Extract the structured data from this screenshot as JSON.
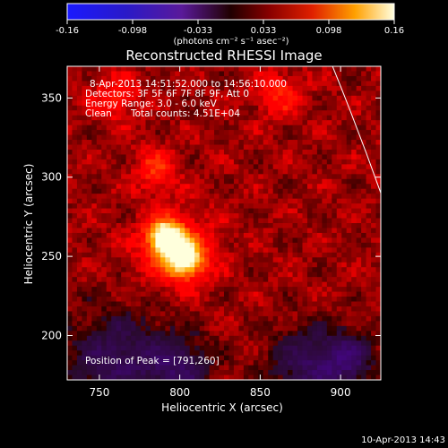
{
  "chart_data": {
    "type": "heatmap",
    "title": "Reconstructed RHESSI Image",
    "xlabel": "Heliocentric X (arcsec)",
    "ylabel": "Heliocentric Y (arcsec)",
    "xlim": [
      730,
      925
    ],
    "ylim": [
      172,
      370
    ],
    "xticks": [
      750,
      800,
      850,
      900
    ],
    "yticks": [
      200,
      250,
      300,
      350
    ],
    "colorbar": {
      "range": [
        -0.16,
        0.16
      ],
      "ticks": [
        "-0.16",
        "-0.098",
        "-0.033",
        "0.033",
        "0.098",
        "0.16"
      ],
      "label": "(photons cm⁻² s⁻¹ asec⁻²)",
      "colormap": "hot-blue diverging"
    },
    "peak_position": [
      791,
      260
    ],
    "sources": [
      {
        "x": 791,
        "y": 262,
        "amplitude": 0.14,
        "sigma": 7
      },
      {
        "x": 803,
        "y": 248,
        "amplitude": 0.115,
        "sigma": 8
      },
      {
        "x": 797,
        "y": 255,
        "amplitude": 0.06,
        "sigma": 16
      },
      {
        "x": 785,
        "y": 305,
        "amplitude": 0.05,
        "sigma": 9
      },
      {
        "x": 862,
        "y": 352,
        "amplitude": 0.045,
        "sigma": 10
      },
      {
        "x": 760,
        "y": 350,
        "amplitude": 0.04,
        "sigma": 10
      }
    ],
    "limb_curve": [
      [
        895,
        370
      ],
      [
        911,
        330
      ],
      [
        925,
        290
      ]
    ],
    "grid": false
  },
  "annotations": {
    "time_range": "8-Apr-2013 14:51:52.000 to 14:56:10.000",
    "detectors": "Detectors: 3F 5F 6F 7F 8F 9F, Att 0",
    "energy_range": "Energy Range: 3.0 - 6.0 keV",
    "clean": "Clean",
    "total_counts": "Total counts: 4.51E+04",
    "peak": "Position of Peak = [791,260]"
  },
  "footer_timestamp": "10-Apr-2013 14:43"
}
